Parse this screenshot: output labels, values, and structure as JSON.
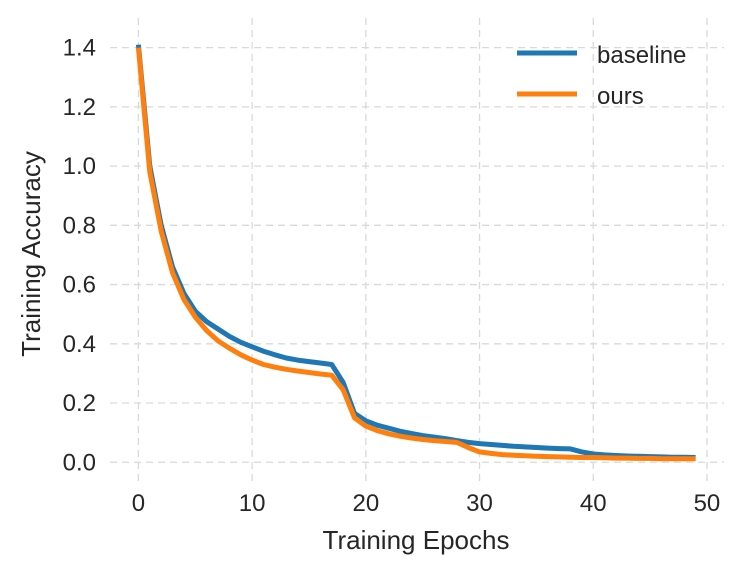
{
  "chart_data": {
    "type": "line",
    "xlabel": "Training Epochs",
    "ylabel": "Training Accuracy",
    "xlim": [
      -2.5,
      51.5
    ],
    "ylim": [
      -0.07,
      1.5
    ],
    "xticks": [
      0,
      10,
      20,
      30,
      40,
      50
    ],
    "yticks": [
      0.0,
      0.2,
      0.4,
      0.6,
      0.8,
      1.0,
      1.2,
      1.4
    ],
    "xtick_labels": [
      "0",
      "10",
      "20",
      "30",
      "40",
      "50"
    ],
    "ytick_labels": [
      "0.0",
      "0.2",
      "0.4",
      "0.6",
      "0.8",
      "1.0",
      "1.2",
      "1.4"
    ],
    "grid": true,
    "legend_position": "top-right",
    "x": [
      0,
      1,
      2,
      3,
      4,
      5,
      6,
      7,
      8,
      9,
      10,
      11,
      12,
      13,
      14,
      15,
      16,
      17,
      18,
      19,
      20,
      21,
      22,
      23,
      24,
      25,
      26,
      27,
      28,
      29,
      30,
      31,
      32,
      33,
      34,
      35,
      36,
      37,
      38,
      39,
      40,
      41,
      42,
      43,
      44,
      45,
      46,
      47,
      48,
      49
    ],
    "series": [
      {
        "name": "baseline",
        "color": "#1f77b4",
        "values": [
          1.41,
          1.0,
          0.8,
          0.66,
          0.57,
          0.51,
          0.475,
          0.45,
          0.425,
          0.405,
          0.39,
          0.375,
          0.363,
          0.352,
          0.345,
          0.34,
          0.335,
          0.33,
          0.27,
          0.165,
          0.14,
          0.125,
          0.115,
          0.105,
          0.097,
          0.09,
          0.085,
          0.08,
          0.073,
          0.067,
          0.063,
          0.06,
          0.057,
          0.054,
          0.052,
          0.05,
          0.048,
          0.046,
          0.045,
          0.035,
          0.028,
          0.025,
          0.023,
          0.021,
          0.02,
          0.019,
          0.018,
          0.017,
          0.017,
          0.016
        ]
      },
      {
        "name": "ours",
        "color": "#ff7f0e",
        "values": [
          1.4,
          0.98,
          0.78,
          0.64,
          0.55,
          0.49,
          0.445,
          0.41,
          0.385,
          0.363,
          0.345,
          0.33,
          0.321,
          0.314,
          0.308,
          0.303,
          0.298,
          0.294,
          0.245,
          0.15,
          0.122,
          0.107,
          0.096,
          0.088,
          0.082,
          0.077,
          0.073,
          0.07,
          0.067,
          0.05,
          0.035,
          0.03,
          0.026,
          0.024,
          0.022,
          0.02,
          0.019,
          0.018,
          0.017,
          0.016,
          0.016,
          0.015,
          0.014,
          0.014,
          0.013,
          0.013,
          0.012,
          0.012,
          0.012,
          0.012
        ]
      }
    ]
  }
}
